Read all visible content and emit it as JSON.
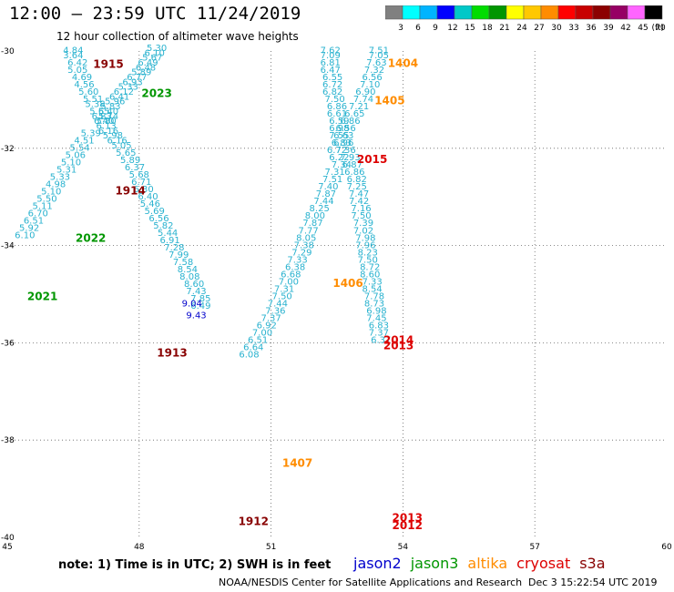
{
  "header": {
    "title": "12:00 – 23:59 UTC 11/24/2019",
    "subtitle": "12 hour collection of altimeter wave heights"
  },
  "colorbar": {
    "unit": "(ft)",
    "ticks": [
      "3",
      "6",
      "9",
      "12",
      "15",
      "18",
      "21",
      "24",
      "27",
      "30",
      "33",
      "36",
      "39",
      "42",
      "45",
      "70"
    ],
    "colors": [
      "#808080",
      "#00ffff",
      "#00b4ff",
      "#0000ff",
      "#00c8c8",
      "#00dc00",
      "#009600",
      "#ffff00",
      "#ffc800",
      "#ff8c00",
      "#ff0000",
      "#c80000",
      "#8c0000",
      "#960064",
      "#ff64ff",
      "#000000"
    ]
  },
  "footer": {
    "note": "note: 1) Time is in UTC; 2) SWH is in feet",
    "credit": "NOAA/NESDIS Center for Satellite Applications and Research",
    "timestamp": "Dec  3 15:22:54 UTC 2019"
  },
  "legend": [
    {
      "name": "jason2",
      "color": "#0000cc"
    },
    {
      "name": "jason3",
      "color": "#009600"
    },
    {
      "name": "altika",
      "color": "#ff8c00"
    },
    {
      "name": "cryosat",
      "color": "#dd0000"
    },
    {
      "name": "s3a",
      "color": "#880000"
    }
  ],
  "chart_data": {
    "type": "scatter",
    "title": "12:00 – 23:59 UTC 11/24/2019",
    "xlim": [
      45,
      60
    ],
    "ylim": [
      -40,
      -30
    ],
    "x_ticks": [
      45,
      48,
      51,
      54,
      57,
      60
    ],
    "y_ticks": [
      -30,
      -32,
      -34,
      -36,
      -38,
      -40
    ],
    "x_tick_labels": [
      "45",
      "48",
      "51",
      "54",
      "57",
      "60"
    ],
    "y_tick_labels": [
      "-30",
      "-32",
      "-34",
      "-36",
      "-38",
      "-40"
    ],
    "grid": "dotted",
    "time_labels": [
      {
        "text": "1915",
        "lon": 47.3,
        "lat": -30.35,
        "color": "#880000"
      },
      {
        "text": "2023",
        "lon": 48.4,
        "lat": -30.95,
        "color": "#009600"
      },
      {
        "text": "1914",
        "lon": 47.8,
        "lat": -32.95,
        "color": "#880000"
      },
      {
        "text": "2022",
        "lon": 46.9,
        "lat": -33.92,
        "color": "#009600"
      },
      {
        "text": "2021",
        "lon": 45.8,
        "lat": -35.12,
        "color": "#009600"
      },
      {
        "text": "1913",
        "lon": 48.75,
        "lat": -36.28,
        "color": "#880000"
      },
      {
        "text": "1912",
        "lon": 50.6,
        "lat": -39.75,
        "color": "#880000"
      },
      {
        "text": "1404",
        "lon": 54.0,
        "lat": -30.33,
        "color": "#ff8c00"
      },
      {
        "text": "1405",
        "lon": 53.7,
        "lat": -31.1,
        "color": "#ff8c00"
      },
      {
        "text": "2015",
        "lon": 53.3,
        "lat": -32.3,
        "color": "#dd0000"
      },
      {
        "text": "1406",
        "lon": 52.75,
        "lat": -34.85,
        "color": "#ff8c00"
      },
      {
        "text": "2014",
        "lon": 53.9,
        "lat": -36.02,
        "color": "#dd0000"
      },
      {
        "text": "2013",
        "lon": 53.9,
        "lat": -36.13,
        "color": "#dd0000"
      },
      {
        "text": "1407",
        "lon": 51.6,
        "lat": -38.55,
        "color": "#ff8c00"
      },
      {
        "text": "2013",
        "lon": 54.1,
        "lat": -39.67,
        "color": "#dd0000"
      },
      {
        "text": "2012",
        "lon": 54.1,
        "lat": -39.83,
        "color": "#dd0000"
      }
    ],
    "series": [
      {
        "name": "s3a",
        "color": "#29b2cf",
        "points": [
          {
            "lon": 48.4,
            "lat": -30.0,
            "v": "5.30"
          },
          {
            "lon": 48.35,
            "lat": -30.1,
            "v": "6.10"
          },
          {
            "lon": 48.3,
            "lat": -30.2,
            "v": "5.67"
          },
          {
            "lon": 48.2,
            "lat": -30.3,
            "v": "6.49"
          },
          {
            "lon": 48.15,
            "lat": -30.4,
            "v": "6.48"
          },
          {
            "lon": 48.05,
            "lat": -30.5,
            "v": "5.89"
          },
          {
            "lon": 47.95,
            "lat": -30.6,
            "v": "6.77"
          },
          {
            "lon": 47.85,
            "lat": -30.7,
            "v": "6.93"
          },
          {
            "lon": 47.75,
            "lat": -30.8,
            "v": "5.33"
          },
          {
            "lon": 47.65,
            "lat": -30.9,
            "v": "6.12"
          },
          {
            "lon": 47.55,
            "lat": -31.0,
            "v": "6.41"
          },
          {
            "lon": 47.45,
            "lat": -31.1,
            "v": "5.96"
          },
          {
            "lon": 47.35,
            "lat": -31.2,
            "v": "5.83"
          },
          {
            "lon": 47.3,
            "lat": -31.3,
            "v": "6.40"
          },
          {
            "lon": 47.3,
            "lat": -31.4,
            "v": "5.74"
          },
          {
            "lon": 47.25,
            "lat": -31.5,
            "v": "5.80"
          },
          {
            "lon": 47.25,
            "lat": -31.6,
            "v": "6.13"
          },
          {
            "lon": 47.3,
            "lat": -31.7,
            "v": "6.16"
          },
          {
            "lon": 47.4,
            "lat": -31.8,
            "v": "5.98"
          },
          {
            "lon": 47.5,
            "lat": -31.9,
            "v": "6.16"
          },
          {
            "lon": 47.6,
            "lat": -32.0,
            "v": "5.05"
          },
          {
            "lon": 47.7,
            "lat": -32.15,
            "v": "5.65"
          },
          {
            "lon": 47.8,
            "lat": -32.3,
            "v": "5.89"
          },
          {
            "lon": 47.9,
            "lat": -32.45,
            "v": "6.37"
          },
          {
            "lon": 48.0,
            "lat": -32.6,
            "v": "5.68"
          },
          {
            "lon": 48.05,
            "lat": -32.75,
            "v": "6.71"
          },
          {
            "lon": 48.1,
            "lat": -32.9,
            "v": "6.30"
          },
          {
            "lon": 48.2,
            "lat": -33.05,
            "v": "6.40"
          },
          {
            "lon": 48.25,
            "lat": -33.2,
            "v": "5.46"
          },
          {
            "lon": 48.35,
            "lat": -33.35,
            "v": "5.69"
          },
          {
            "lon": 48.45,
            "lat": -33.5,
            "v": "6.56"
          },
          {
            "lon": 48.55,
            "lat": -33.65,
            "v": "5.82"
          },
          {
            "lon": 48.65,
            "lat": -33.8,
            "v": "5.44"
          },
          {
            "lon": 48.7,
            "lat": -33.95,
            "v": "6.91"
          },
          {
            "lon": 48.8,
            "lat": -34.1,
            "v": "7.28"
          },
          {
            "lon": 48.9,
            "lat": -34.25,
            "v": "7.99"
          },
          {
            "lon": 49.0,
            "lat": -34.4,
            "v": "7.58"
          },
          {
            "lon": 49.1,
            "lat": -34.55,
            "v": "8.54"
          },
          {
            "lon": 49.15,
            "lat": -34.7,
            "v": "8.08"
          },
          {
            "lon": 49.25,
            "lat": -34.85,
            "v": "8.60"
          },
          {
            "lon": 49.3,
            "lat": -35.0,
            "v": "7.43"
          },
          {
            "lon": 49.4,
            "lat": -35.15,
            "v": "7.85"
          },
          {
            "lon": 49.4,
            "lat": -35.3,
            "v": "6.49"
          }
        ]
      },
      {
        "name": "jason3",
        "color": "#29b2cf",
        "points": [
          {
            "lon": 46.5,
            "lat": -30.05,
            "v": "4.84"
          },
          {
            "lon": 46.5,
            "lat": -30.15,
            "v": "3.64"
          },
          {
            "lon": 46.6,
            "lat": -30.3,
            "v": "6.42"
          },
          {
            "lon": 46.6,
            "lat": -30.45,
            "v": "5.05"
          },
          {
            "lon": 46.7,
            "lat": -30.6,
            "v": "4.69"
          },
          {
            "lon": 46.75,
            "lat": -30.75,
            "v": "4.56"
          },
          {
            "lon": 46.85,
            "lat": -30.9,
            "v": "5.60"
          },
          {
            "lon": 46.95,
            "lat": -31.05,
            "v": "5.51"
          },
          {
            "lon": 47.0,
            "lat": -31.15,
            "v": "5.38"
          },
          {
            "lon": 47.1,
            "lat": -31.3,
            "v": "5.55"
          },
          {
            "lon": 47.15,
            "lat": -31.4,
            "v": "6.83"
          },
          {
            "lon": 47.2,
            "lat": -31.5,
            "v": "6.40"
          },
          {
            "lon": 46.9,
            "lat": -31.75,
            "v": "5.39"
          },
          {
            "lon": 46.75,
            "lat": -31.9,
            "v": "4.51"
          },
          {
            "lon": 46.65,
            "lat": -32.05,
            "v": "5.54"
          },
          {
            "lon": 46.55,
            "lat": -32.2,
            "v": "5.06"
          },
          {
            "lon": 46.45,
            "lat": -32.35,
            "v": "5.10"
          },
          {
            "lon": 46.35,
            "lat": -32.5,
            "v": "5.31"
          },
          {
            "lon": 46.2,
            "lat": -32.65,
            "v": "5.33"
          },
          {
            "lon": 46.1,
            "lat": -32.8,
            "v": "4.98"
          },
          {
            "lon": 46.0,
            "lat": -32.95,
            "v": "5.10"
          },
          {
            "lon": 45.9,
            "lat": -33.1,
            "v": "5.50"
          },
          {
            "lon": 45.8,
            "lat": -33.25,
            "v": "5.11"
          },
          {
            "lon": 45.7,
            "lat": -33.4,
            "v": "6.70"
          },
          {
            "lon": 45.6,
            "lat": -33.55,
            "v": "6.51"
          },
          {
            "lon": 45.5,
            "lat": -33.7,
            "v": "5.92"
          },
          {
            "lon": 45.4,
            "lat": -33.85,
            "v": "6.10"
          }
        ]
      },
      {
        "name": "jason2",
        "color": "#0000cc",
        "points": [
          {
            "lon": 49.2,
            "lat": -35.25,
            "v": "9.04"
          },
          {
            "lon": 49.3,
            "lat": -35.5,
            "v": "9.43"
          }
        ]
      },
      {
        "name": "altika",
        "color": "#29b2cf",
        "points": [
          {
            "lon": 52.35,
            "lat": -30.05,
            "v": "7.62"
          },
          {
            "lon": 52.35,
            "lat": -30.15,
            "v": "7.09"
          },
          {
            "lon": 52.35,
            "lat": -30.3,
            "v": "6.81"
          },
          {
            "lon": 52.35,
            "lat": -30.45,
            "v": "6.47"
          },
          {
            "lon": 52.4,
            "lat": -30.6,
            "v": "6.55"
          },
          {
            "lon": 52.4,
            "lat": -30.75,
            "v": "6.72"
          },
          {
            "lon": 52.4,
            "lat": -30.9,
            "v": "6.82"
          },
          {
            "lon": 52.45,
            "lat": -31.05,
            "v": "7.50"
          },
          {
            "lon": 52.5,
            "lat": -31.2,
            "v": "6.86"
          },
          {
            "lon": 52.5,
            "lat": -31.35,
            "v": "6.61"
          },
          {
            "lon": 52.55,
            "lat": -31.5,
            "v": "6.59"
          },
          {
            "lon": 52.55,
            "lat": -31.65,
            "v": "6.98"
          },
          {
            "lon": 52.55,
            "lat": -31.8,
            "v": "7.55"
          },
          {
            "lon": 52.6,
            "lat": -31.95,
            "v": "6.83"
          },
          {
            "lon": 52.5,
            "lat": -32.1,
            "v": "6.72"
          },
          {
            "lon": 52.55,
            "lat": -32.25,
            "v": "6.22"
          },
          {
            "lon": 52.6,
            "lat": -32.4,
            "v": "7.34"
          },
          {
            "lon": 52.45,
            "lat": -32.55,
            "v": "7.31"
          },
          {
            "lon": 52.4,
            "lat": -32.7,
            "v": "7.51"
          },
          {
            "lon": 52.3,
            "lat": -32.85,
            "v": "7.40"
          },
          {
            "lon": 52.25,
            "lat": -33.0,
            "v": "7.87"
          },
          {
            "lon": 52.2,
            "lat": -33.15,
            "v": "7.44"
          },
          {
            "lon": 52.1,
            "lat": -33.3,
            "v": "8.25"
          },
          {
            "lon": 52.0,
            "lat": -33.45,
            "v": "8.00"
          },
          {
            "lon": 51.95,
            "lat": -33.6,
            "v": "7.87"
          },
          {
            "lon": 51.85,
            "lat": -33.75,
            "v": "7.77"
          },
          {
            "lon": 51.8,
            "lat": -33.9,
            "v": "8.05"
          },
          {
            "lon": 51.75,
            "lat": -34.05,
            "v": "7.38"
          },
          {
            "lon": 51.7,
            "lat": -34.2,
            "v": "7.29"
          },
          {
            "lon": 51.6,
            "lat": -34.35,
            "v": "7.33"
          },
          {
            "lon": 51.55,
            "lat": -34.5,
            "v": "6.38"
          },
          {
            "lon": 51.45,
            "lat": -34.65,
            "v": "6.68"
          },
          {
            "lon": 51.4,
            "lat": -34.8,
            "v": "7.00"
          },
          {
            "lon": 51.3,
            "lat": -34.95,
            "v": "7.31"
          },
          {
            "lon": 51.25,
            "lat": -35.1,
            "v": "7.50"
          },
          {
            "lon": 51.15,
            "lat": -35.25,
            "v": "7.44"
          },
          {
            "lon": 51.1,
            "lat": -35.4,
            "v": "7.36"
          },
          {
            "lon": 51.0,
            "lat": -35.55,
            "v": "7.37"
          },
          {
            "lon": 50.9,
            "lat": -35.7,
            "v": "6.92"
          },
          {
            "lon": 50.8,
            "lat": -35.85,
            "v": "7.00"
          },
          {
            "lon": 50.7,
            "lat": -36.0,
            "v": "6.51"
          },
          {
            "lon": 50.6,
            "lat": -36.15,
            "v": "6.64"
          },
          {
            "lon": 50.5,
            "lat": -36.3,
            "v": "6.08"
          }
        ]
      },
      {
        "name": "cryosat",
        "color": "#29b2cf",
        "points": [
          {
            "lon": 53.45,
            "lat": -30.05,
            "v": "7.51"
          },
          {
            "lon": 53.45,
            "lat": -30.15,
            "v": "7.05"
          },
          {
            "lon": 53.4,
            "lat": -30.3,
            "v": "7.63"
          },
          {
            "lon": 53.35,
            "lat": -30.45,
            "v": "7.32"
          },
          {
            "lon": 53.3,
            "lat": -30.6,
            "v": "6.56"
          },
          {
            "lon": 53.25,
            "lat": -30.75,
            "v": "7.10"
          },
          {
            "lon": 53.15,
            "lat": -30.9,
            "v": "6.90"
          },
          {
            "lon": 53.1,
            "lat": -31.05,
            "v": "7.74"
          },
          {
            "lon": 53.0,
            "lat": -31.2,
            "v": "7.21"
          },
          {
            "lon": 52.9,
            "lat": -31.35,
            "v": "6.65"
          },
          {
            "lon": 52.8,
            "lat": -31.5,
            "v": "6.86"
          },
          {
            "lon": 52.7,
            "lat": -31.65,
            "v": "6.56"
          },
          {
            "lon": 52.65,
            "lat": -31.8,
            "v": "6.63"
          },
          {
            "lon": 52.65,
            "lat": -31.95,
            "v": "6.96"
          },
          {
            "lon": 52.7,
            "lat": -32.1,
            "v": "7.36"
          },
          {
            "lon": 52.8,
            "lat": -32.25,
            "v": "7.93"
          },
          {
            "lon": 52.85,
            "lat": -32.4,
            "v": "6.87"
          },
          {
            "lon": 52.9,
            "lat": -32.55,
            "v": "6.86"
          },
          {
            "lon": 52.95,
            "lat": -32.7,
            "v": "6.82"
          },
          {
            "lon": 52.95,
            "lat": -32.85,
            "v": "7.25"
          },
          {
            "lon": 53.0,
            "lat": -33.0,
            "v": "7.47"
          },
          {
            "lon": 53.0,
            "lat": -33.15,
            "v": "7.42"
          },
          {
            "lon": 53.05,
            "lat": -33.3,
            "v": "7.16"
          },
          {
            "lon": 53.05,
            "lat": -33.45,
            "v": "7.50"
          },
          {
            "lon": 53.1,
            "lat": -33.6,
            "v": "7.39"
          },
          {
            "lon": 53.1,
            "lat": -33.75,
            "v": "7.02"
          },
          {
            "lon": 53.15,
            "lat": -33.9,
            "v": "7.98"
          },
          {
            "lon": 53.15,
            "lat": -34.05,
            "v": "7.96"
          },
          {
            "lon": 53.2,
            "lat": -34.2,
            "v": "8.23"
          },
          {
            "lon": 53.2,
            "lat": -34.35,
            "v": "7.50"
          },
          {
            "lon": 53.25,
            "lat": -34.5,
            "v": "8.72"
          },
          {
            "lon": 53.25,
            "lat": -34.65,
            "v": "8.60"
          },
          {
            "lon": 53.3,
            "lat": -34.8,
            "v": "7.33"
          },
          {
            "lon": 53.3,
            "lat": -34.95,
            "v": "8.54"
          },
          {
            "lon": 53.35,
            "lat": -35.1,
            "v": "7.78"
          },
          {
            "lon": 53.35,
            "lat": -35.25,
            "v": "8.73"
          },
          {
            "lon": 53.4,
            "lat": -35.4,
            "v": "6.98"
          },
          {
            "lon": 53.4,
            "lat": -35.55,
            "v": "7.45"
          },
          {
            "lon": 53.45,
            "lat": -35.7,
            "v": "6.83"
          },
          {
            "lon": 53.45,
            "lat": -35.85,
            "v": "7.37"
          },
          {
            "lon": 53.5,
            "lat": -36.0,
            "v": "6.37"
          }
        ]
      }
    ]
  }
}
